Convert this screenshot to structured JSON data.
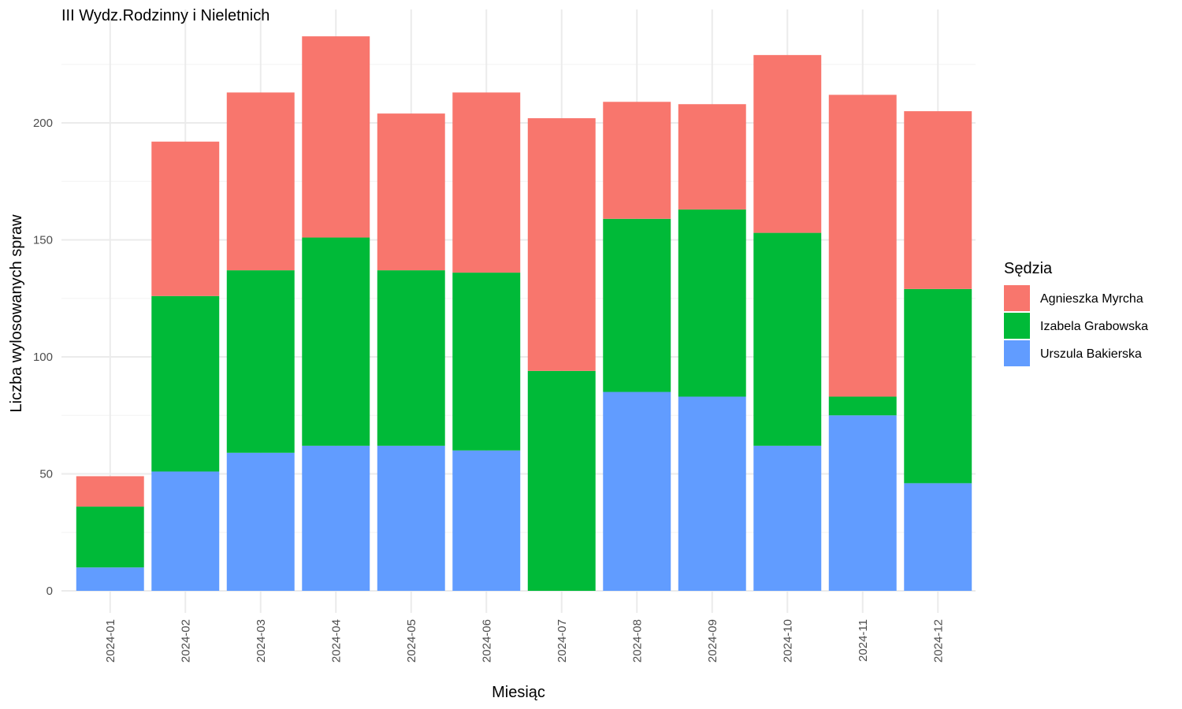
{
  "chart_data": {
    "type": "bar",
    "stacked": true,
    "title": "III Wydz.Rodzinny i Nieletnich",
    "xlabel": "Miesiąc",
    "ylabel": "Liczba wylosowanych spraw",
    "ylim": [
      0,
      245
    ],
    "yticks": [
      0,
      50,
      100,
      150,
      200
    ],
    "grid": true,
    "legend": {
      "title": "Sędzia",
      "position": "right",
      "entries": [
        "Agnieszka Myrcha",
        "Izabela Grabowska",
        "Urszula Bakierska"
      ]
    },
    "categories": [
      "2024-01",
      "2024-02",
      "2024-03",
      "2024-04",
      "2024-05",
      "2024-06",
      "2024-07",
      "2024-08",
      "2024-09",
      "2024-10",
      "2024-11",
      "2024-12"
    ],
    "series": [
      {
        "name": "Urszula Bakierska",
        "color": "#619cff",
        "values": [
          10,
          51,
          59,
          62,
          62,
          60,
          0,
          85,
          83,
          62,
          75,
          46
        ]
      },
      {
        "name": "Izabela Grabowska",
        "color": "#00ba38",
        "values": [
          26,
          75,
          78,
          89,
          75,
          76,
          94,
          74,
          80,
          91,
          8,
          83
        ]
      },
      {
        "name": "Agnieszka Myrcha",
        "color": "#f8766d",
        "values": [
          13,
          66,
          76,
          86,
          67,
          77,
          108,
          50,
          45,
          76,
          129,
          76
        ]
      }
    ]
  }
}
